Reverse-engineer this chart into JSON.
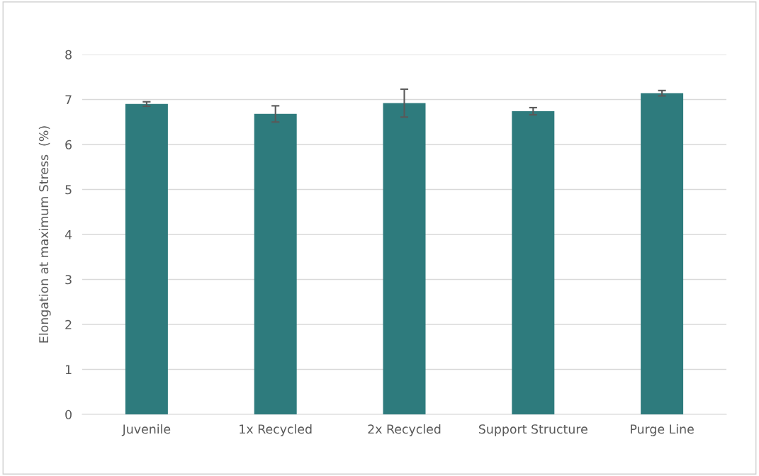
{
  "chart_data": {
    "type": "bar",
    "ylabel": "Elongation at maximum Stress  (%)",
    "categories": [
      "Juvenile",
      "1x Recycled",
      "2x Recycled",
      "Support Structure",
      "Purge Line"
    ],
    "values": [
      6.9,
      6.68,
      6.92,
      6.74,
      7.14
    ],
    "errors": [
      0.05,
      0.18,
      0.31,
      0.08,
      0.06
    ],
    "color": "#2e7b7d",
    "ylim": [
      0,
      8
    ],
    "yticks": [
      0,
      1,
      2,
      3,
      4,
      5,
      6,
      7,
      8
    ],
    "grid": "y"
  }
}
